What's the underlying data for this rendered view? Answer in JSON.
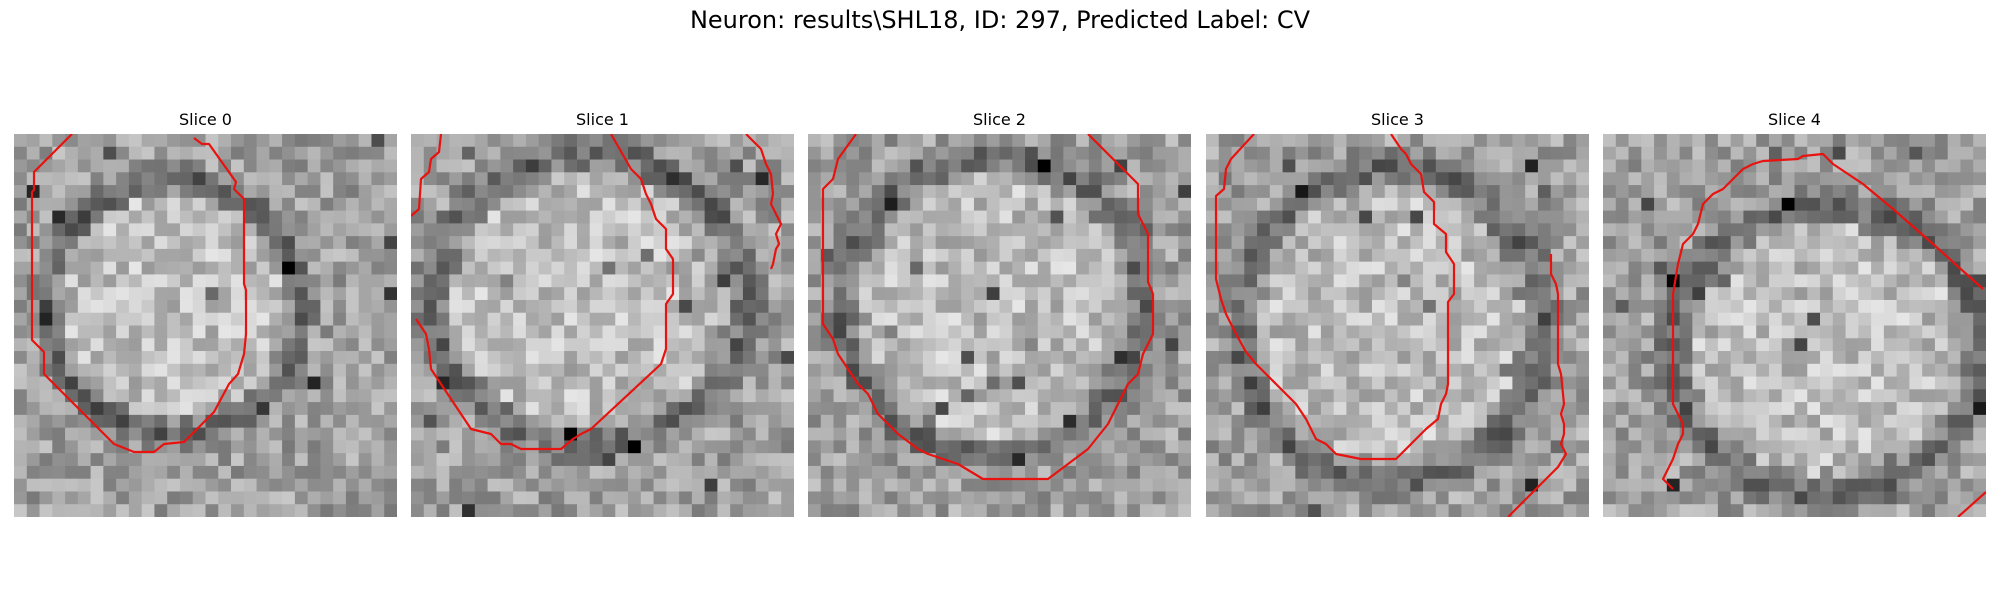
{
  "figure": {
    "title": "Neuron: results\\SHL18, ID: 297, Predicted Label: CV"
  },
  "panels": [
    {
      "title": "Slice 0"
    },
    {
      "title": "Slice 1"
    },
    {
      "title": "Slice 2"
    },
    {
      "title": "Slice 3"
    },
    {
      "title": "Slice 4"
    }
  ],
  "colors": {
    "contour": "#e8120f",
    "background": "#ffffff"
  },
  "image": {
    "colormap": "grayscale",
    "grid": "30x30 pixel tiles"
  }
}
